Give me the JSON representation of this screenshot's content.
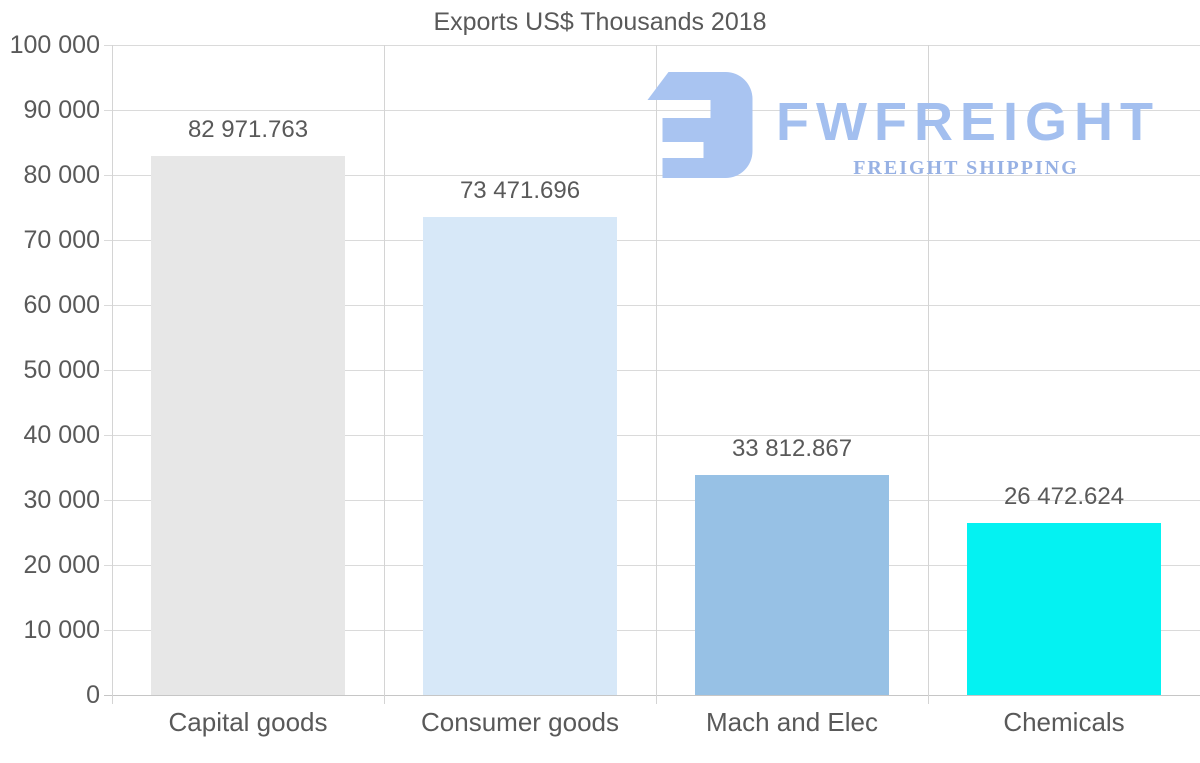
{
  "logo": {
    "brand": "FWFREIGHT",
    "tagline": "FREIGHT SHIPPING",
    "icon": "freight-monogram-icon",
    "icon_color": "#a9c4f1",
    "brand_color": "#a3bfef",
    "tagline_color": "#97b1e4"
  },
  "chart_data": {
    "type": "bar",
    "title": "Exports US$ Thousands 2018",
    "categories": [
      "Capital goods",
      "Consumer goods",
      "Mach and Elec",
      "Chemicals"
    ],
    "values": [
      82971.763,
      73471.696,
      33812.867,
      26472.624
    ],
    "value_labels": [
      "82 971.763",
      "73 471.696",
      "33 812.867",
      "26 472.624"
    ],
    "bar_colors": [
      "#e7e7e7",
      "#d7e8f8",
      "#97c1e5",
      "#04f2f2"
    ],
    "xlabel": "",
    "ylabel": "",
    "ylim": [
      0,
      100000
    ],
    "yticks": [
      {
        "v": 0,
        "label": "0"
      },
      {
        "v": 10000,
        "label": "10 000"
      },
      {
        "v": 20000,
        "label": "20 000"
      },
      {
        "v": 30000,
        "label": "30 000"
      },
      {
        "v": 40000,
        "label": "40 000"
      },
      {
        "v": 50000,
        "label": "50 000"
      },
      {
        "v": 60000,
        "label": "60 000"
      },
      {
        "v": 70000,
        "label": "70 000"
      },
      {
        "v": 80000,
        "label": "80 000"
      },
      {
        "v": 90000,
        "label": "90 000"
      },
      {
        "v": 100000,
        "label": "100 000"
      }
    ],
    "grid": true,
    "legend": false,
    "text_color": "#595959",
    "grid_color": "#dadada",
    "axis_color": "#c6c6c6",
    "border_color": "#d4d4d4"
  }
}
